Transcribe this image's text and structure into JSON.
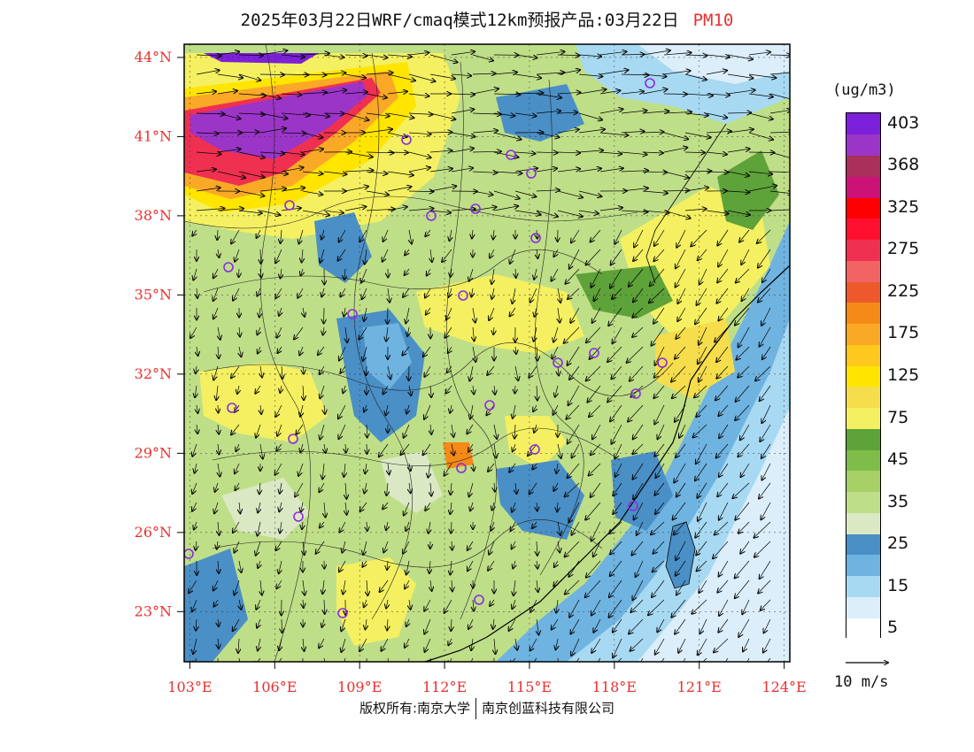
{
  "header": {
    "title": "2025年03月22日WRF/cmaq模式12km预报产品:03月22日",
    "pollutant": "PM10"
  },
  "map": {
    "lat_labels": [
      "44°N",
      "41°N",
      "38°N",
      "35°N",
      "32°N",
      "29°N",
      "26°N",
      "23°N"
    ],
    "lat_values": [
      44,
      41,
      38,
      35,
      32,
      29,
      26,
      23
    ],
    "lon_labels": [
      "103°E",
      "106°E",
      "109°E",
      "112°E",
      "115°E",
      "118°E",
      "121°E",
      "124°E"
    ],
    "lon_values": [
      103,
      106,
      109,
      112,
      115,
      118,
      121,
      124
    ],
    "lat_range": [
      21.1,
      44.5
    ],
    "lon_range": [
      102.8,
      124.2
    ],
    "colors": {
      "label": "#e8302e",
      "station_marker": "#8a2be2",
      "wind_vector": "#000000",
      "coast_border": "#000000"
    }
  },
  "legend": {
    "unit": "(ug/m3)",
    "levels": [
      {
        "color": "#ffffff",
        "label": "5"
      },
      {
        "color": "#dbeefa",
        "label": ""
      },
      {
        "color": "#a8d9f2",
        "label": "15"
      },
      {
        "color": "#6fb3e0",
        "label": ""
      },
      {
        "color": "#4a8fc6",
        "label": "25"
      },
      {
        "color": "#dbe8c4",
        "label": ""
      },
      {
        "color": "#bfde88",
        "label": "35"
      },
      {
        "color": "#a7d066",
        "label": ""
      },
      {
        "color": "#80bc48",
        "label": "45"
      },
      {
        "color": "#5ea23a",
        "label": ""
      },
      {
        "color": "#f4f061",
        "label": "75"
      },
      {
        "color": "#f6dd4c",
        "label": ""
      },
      {
        "color": "#ffe500",
        "label": "125"
      },
      {
        "color": "#ffc81e",
        "label": ""
      },
      {
        "color": "#f9a926",
        "label": "175"
      },
      {
        "color": "#f68a18",
        "label": ""
      },
      {
        "color": "#ec5a2c",
        "label": "225"
      },
      {
        "color": "#f26464",
        "label": ""
      },
      {
        "color": "#f03050",
        "label": "275"
      },
      {
        "color": "#ff1030",
        "label": ""
      },
      {
        "color": "#ff0000",
        "label": "325"
      },
      {
        "color": "#cc1177",
        "label": ""
      },
      {
        "color": "#a8305a",
        "label": "368"
      },
      {
        "color": "#9b35c8",
        "label": ""
      },
      {
        "color": "#7d20d9",
        "label": "403"
      }
    ],
    "vector_reference": "10 m/s"
  },
  "footer": {
    "copyright_left": "版权所有:南京大学",
    "copyright_right": "南京创蓝科技有限公司"
  }
}
